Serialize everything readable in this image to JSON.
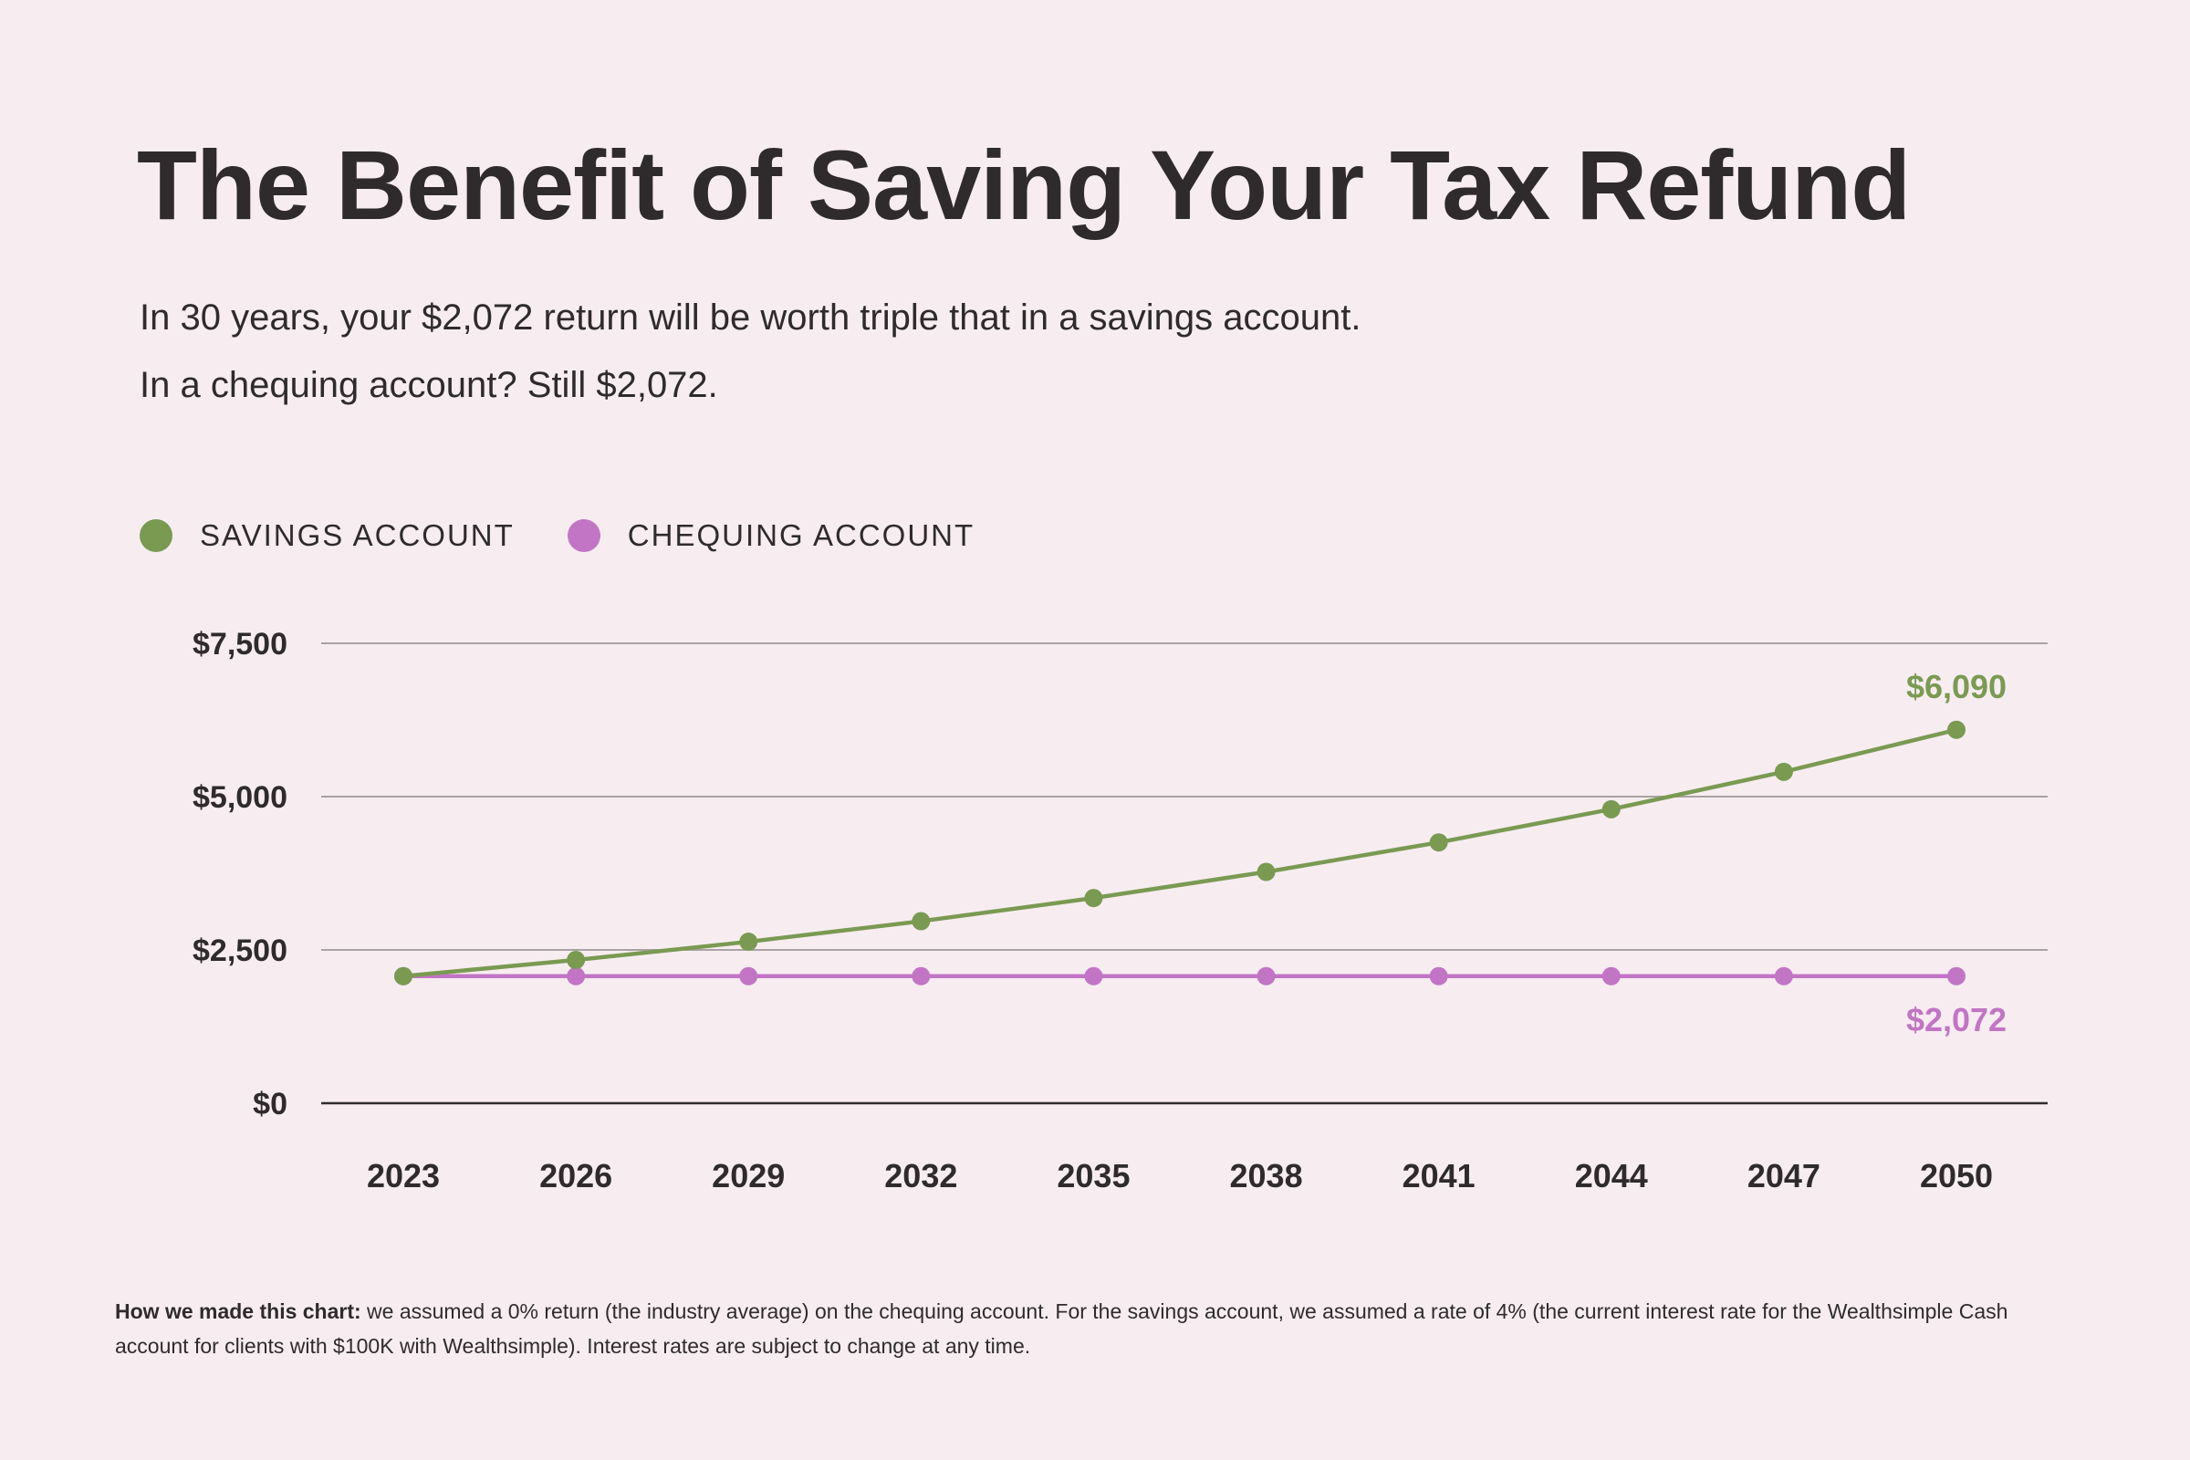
{
  "title": "The Benefit of Saving Your Tax Refund",
  "subtitle_lines": [
    "In 30 years, your $2,072 return will be worth triple that in a savings account.",
    "In a chequing account? Still $2,072."
  ],
  "footnote": {
    "lead": "How we made this chart:",
    "text": " we assumed a 0% return (the industry average) on the chequing account. For the savings account, we assumed a rate of 4% (the current interest rate for the Wealthsimple Cash account for clients with $100K with Wealthsimple). Interest rates are subject to change at any time."
  },
  "chart_data": {
    "type": "line",
    "x": [
      2023,
      2026,
      2029,
      2032,
      2035,
      2038,
      2041,
      2044,
      2047,
      2050
    ],
    "x_tick_labels": [
      "2023",
      "2026",
      "2029",
      "2032",
      "2035",
      "2038",
      "2041",
      "2044",
      "2047",
      "2050"
    ],
    "y_ticks": [
      0,
      2500,
      5000,
      7500
    ],
    "y_tick_labels": [
      "$0",
      "$2,500",
      "$5,000",
      "$7,500"
    ],
    "ylim": [
      0,
      7500
    ],
    "grid": true,
    "legend_placement": "top-left",
    "series": [
      {
        "name": "SAVINGS ACCOUNT",
        "color": "#7a9a52",
        "values": [
          2072,
          2336,
          2633,
          2968,
          3346,
          3772,
          4253,
          4794,
          5404,
          6090
        ],
        "end_label": "$6,090"
      },
      {
        "name": "CHEQUING ACCOUNT",
        "color": "#c275c4",
        "values": [
          2072,
          2072,
          2072,
          2072,
          2072,
          2072,
          2072,
          2072,
          2072,
          2072
        ],
        "end_label": "$2,072"
      }
    ]
  }
}
